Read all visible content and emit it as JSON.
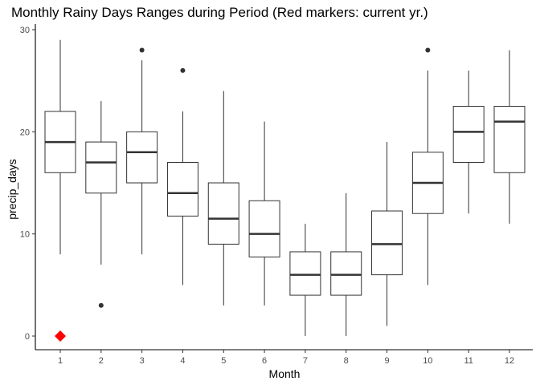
{
  "chart_data": {
    "type": "boxplot",
    "title": "Monthly Rainy Days Ranges during Period (Red markers: current yr.)",
    "xlabel": "Month",
    "ylabel": "precip_days",
    "ylim": [
      -1,
      30.5
    ],
    "yticks": [
      0,
      10,
      20,
      30
    ],
    "categories": [
      "1",
      "2",
      "3",
      "4",
      "5",
      "6",
      "7",
      "8",
      "9",
      "10",
      "11",
      "12"
    ],
    "boxes": [
      {
        "month": "1",
        "min": 8,
        "q1": 16,
        "median": 19,
        "q3": 22,
        "max": 29,
        "outliers": []
      },
      {
        "month": "2",
        "min": 7,
        "q1": 14,
        "median": 17,
        "q3": 19,
        "max": 23,
        "outliers": [
          3
        ]
      },
      {
        "month": "3",
        "min": 8,
        "q1": 15,
        "median": 18,
        "q3": 20,
        "max": 27,
        "outliers": [
          28
        ]
      },
      {
        "month": "4",
        "min": 5,
        "q1": 11.75,
        "median": 14,
        "q3": 17,
        "max": 22,
        "outliers": [
          26
        ]
      },
      {
        "month": "5",
        "min": 3,
        "q1": 9,
        "median": 11.5,
        "q3": 15,
        "max": 24,
        "outliers": []
      },
      {
        "month": "6",
        "min": 3,
        "q1": 7.75,
        "median": 10,
        "q3": 13.25,
        "max": 21,
        "outliers": []
      },
      {
        "month": "7",
        "min": 0,
        "q1": 4,
        "median": 6,
        "q3": 8.25,
        "max": 11,
        "outliers": []
      },
      {
        "month": "8",
        "min": 0,
        "q1": 4,
        "median": 6,
        "q3": 8.25,
        "max": 14,
        "outliers": []
      },
      {
        "month": "9",
        "min": 1,
        "q1": 6,
        "median": 9,
        "q3": 12.25,
        "max": 19,
        "outliers": []
      },
      {
        "month": "10",
        "min": 5,
        "q1": 12,
        "median": 15,
        "q3": 18,
        "max": 26,
        "outliers": [
          28
        ]
      },
      {
        "month": "11",
        "min": 12,
        "q1": 17,
        "median": 20,
        "q3": 22.5,
        "max": 26,
        "outliers": []
      },
      {
        "month": "12",
        "min": 11,
        "q1": 16,
        "median": 21,
        "q3": 22.5,
        "max": 28,
        "outliers": []
      }
    ],
    "current_year": [
      {
        "month": "1",
        "value": 0
      }
    ],
    "current_year_color": "#ff0000",
    "box_color": "#333333",
    "grid": false
  }
}
